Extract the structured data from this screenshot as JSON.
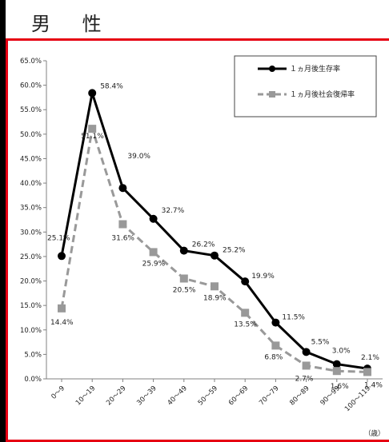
{
  "header": {
    "title": "男 性"
  },
  "chart_data": {
    "type": "line",
    "title": "",
    "xlabel": "",
    "ylabel": "",
    "unit_label": "（歳）",
    "categories": [
      "0〜9",
      "10〜19",
      "20〜29",
      "30〜39",
      "40〜49",
      "50〜59",
      "60〜69",
      "70〜79",
      "80〜89",
      "90〜99",
      "100〜119"
    ],
    "yticks": [
      "0.0%",
      "5.0%",
      "10.0%",
      "15.0%",
      "20.0%",
      "25.0%",
      "30.0%",
      "35.0%",
      "40.0%",
      "45.0%",
      "50.0%",
      "55.0%",
      "60.0%",
      "65.0%"
    ],
    "ylim": [
      0,
      65
    ],
    "grid": false,
    "legend_position": "top-right",
    "series": [
      {
        "name": "１ヵ月後生存率",
        "style": "solid",
        "color": "#000000",
        "values": [
          25.1,
          58.4,
          39.0,
          32.7,
          26.2,
          25.2,
          19.9,
          11.5,
          5.5,
          3.0,
          2.1
        ],
        "labels": [
          "25.1%",
          "58.4%",
          "39.0%",
          "32.7%",
          "26.2%",
          "25.2%",
          "19.9%",
          "11.5%",
          "5.5%",
          "3.0%",
          "2.1%"
        ]
      },
      {
        "name": "１ヵ月後社会復帰率",
        "style": "dashed",
        "color": "#999999",
        "values": [
          14.4,
          51.1,
          31.6,
          25.9,
          20.5,
          18.9,
          13.5,
          6.8,
          2.7,
          1.6,
          1.4
        ],
        "labels": [
          "14.4%",
          "51.1%",
          "31.6%",
          "25.9%",
          "20.5%",
          "18.9%",
          "13.5%",
          "6.8%",
          "2.7%",
          "1.6%",
          "1.4%"
        ]
      }
    ]
  }
}
